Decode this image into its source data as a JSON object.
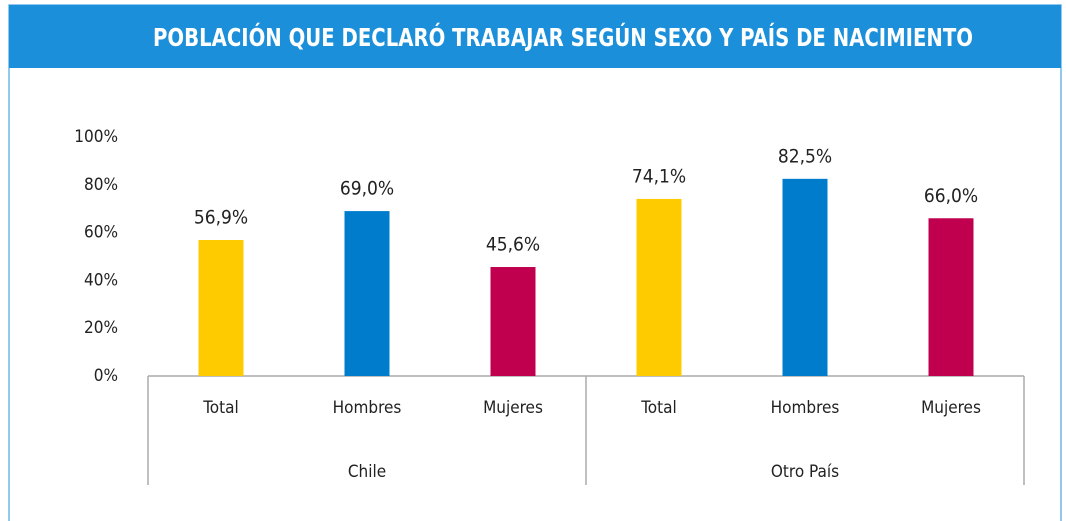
{
  "chart_data": {
    "type": "bar",
    "title": "POBLACIÓN QUE DECLARÓ TRABAJAR SEGÚN SEXO Y PAÍS DE NACIMIENTO",
    "colors": [
      "#fdcb00",
      "#007ccc",
      "#c0004e"
    ],
    "groups": [
      {
        "name": "Chile",
        "categories": [
          "Total",
          "Hombres",
          "Mujeres"
        ],
        "values": [
          56.9,
          69.0,
          45.6
        ],
        "value_labels": [
          "56,9%",
          "69,0%",
          "45,6%"
        ]
      },
      {
        "name": "Otro País",
        "categories": [
          "Total",
          "Hombres",
          "Mujeres"
        ],
        "values": [
          74.1,
          82.5,
          66.0
        ],
        "value_labels": [
          "74,1%",
          "82,5%",
          "66,0%"
        ]
      }
    ],
    "ylim": [
      0,
      100
    ],
    "yticks": [
      {
        "value": 0,
        "label": "0%"
      },
      {
        "value": 20,
        "label": "20%"
      },
      {
        "value": 40,
        "label": "40%"
      },
      {
        "value": 60,
        "label": "60%"
      },
      {
        "value": 80,
        "label": "80%"
      },
      {
        "value": 100,
        "label": "100%"
      }
    ],
    "grid": false
  }
}
